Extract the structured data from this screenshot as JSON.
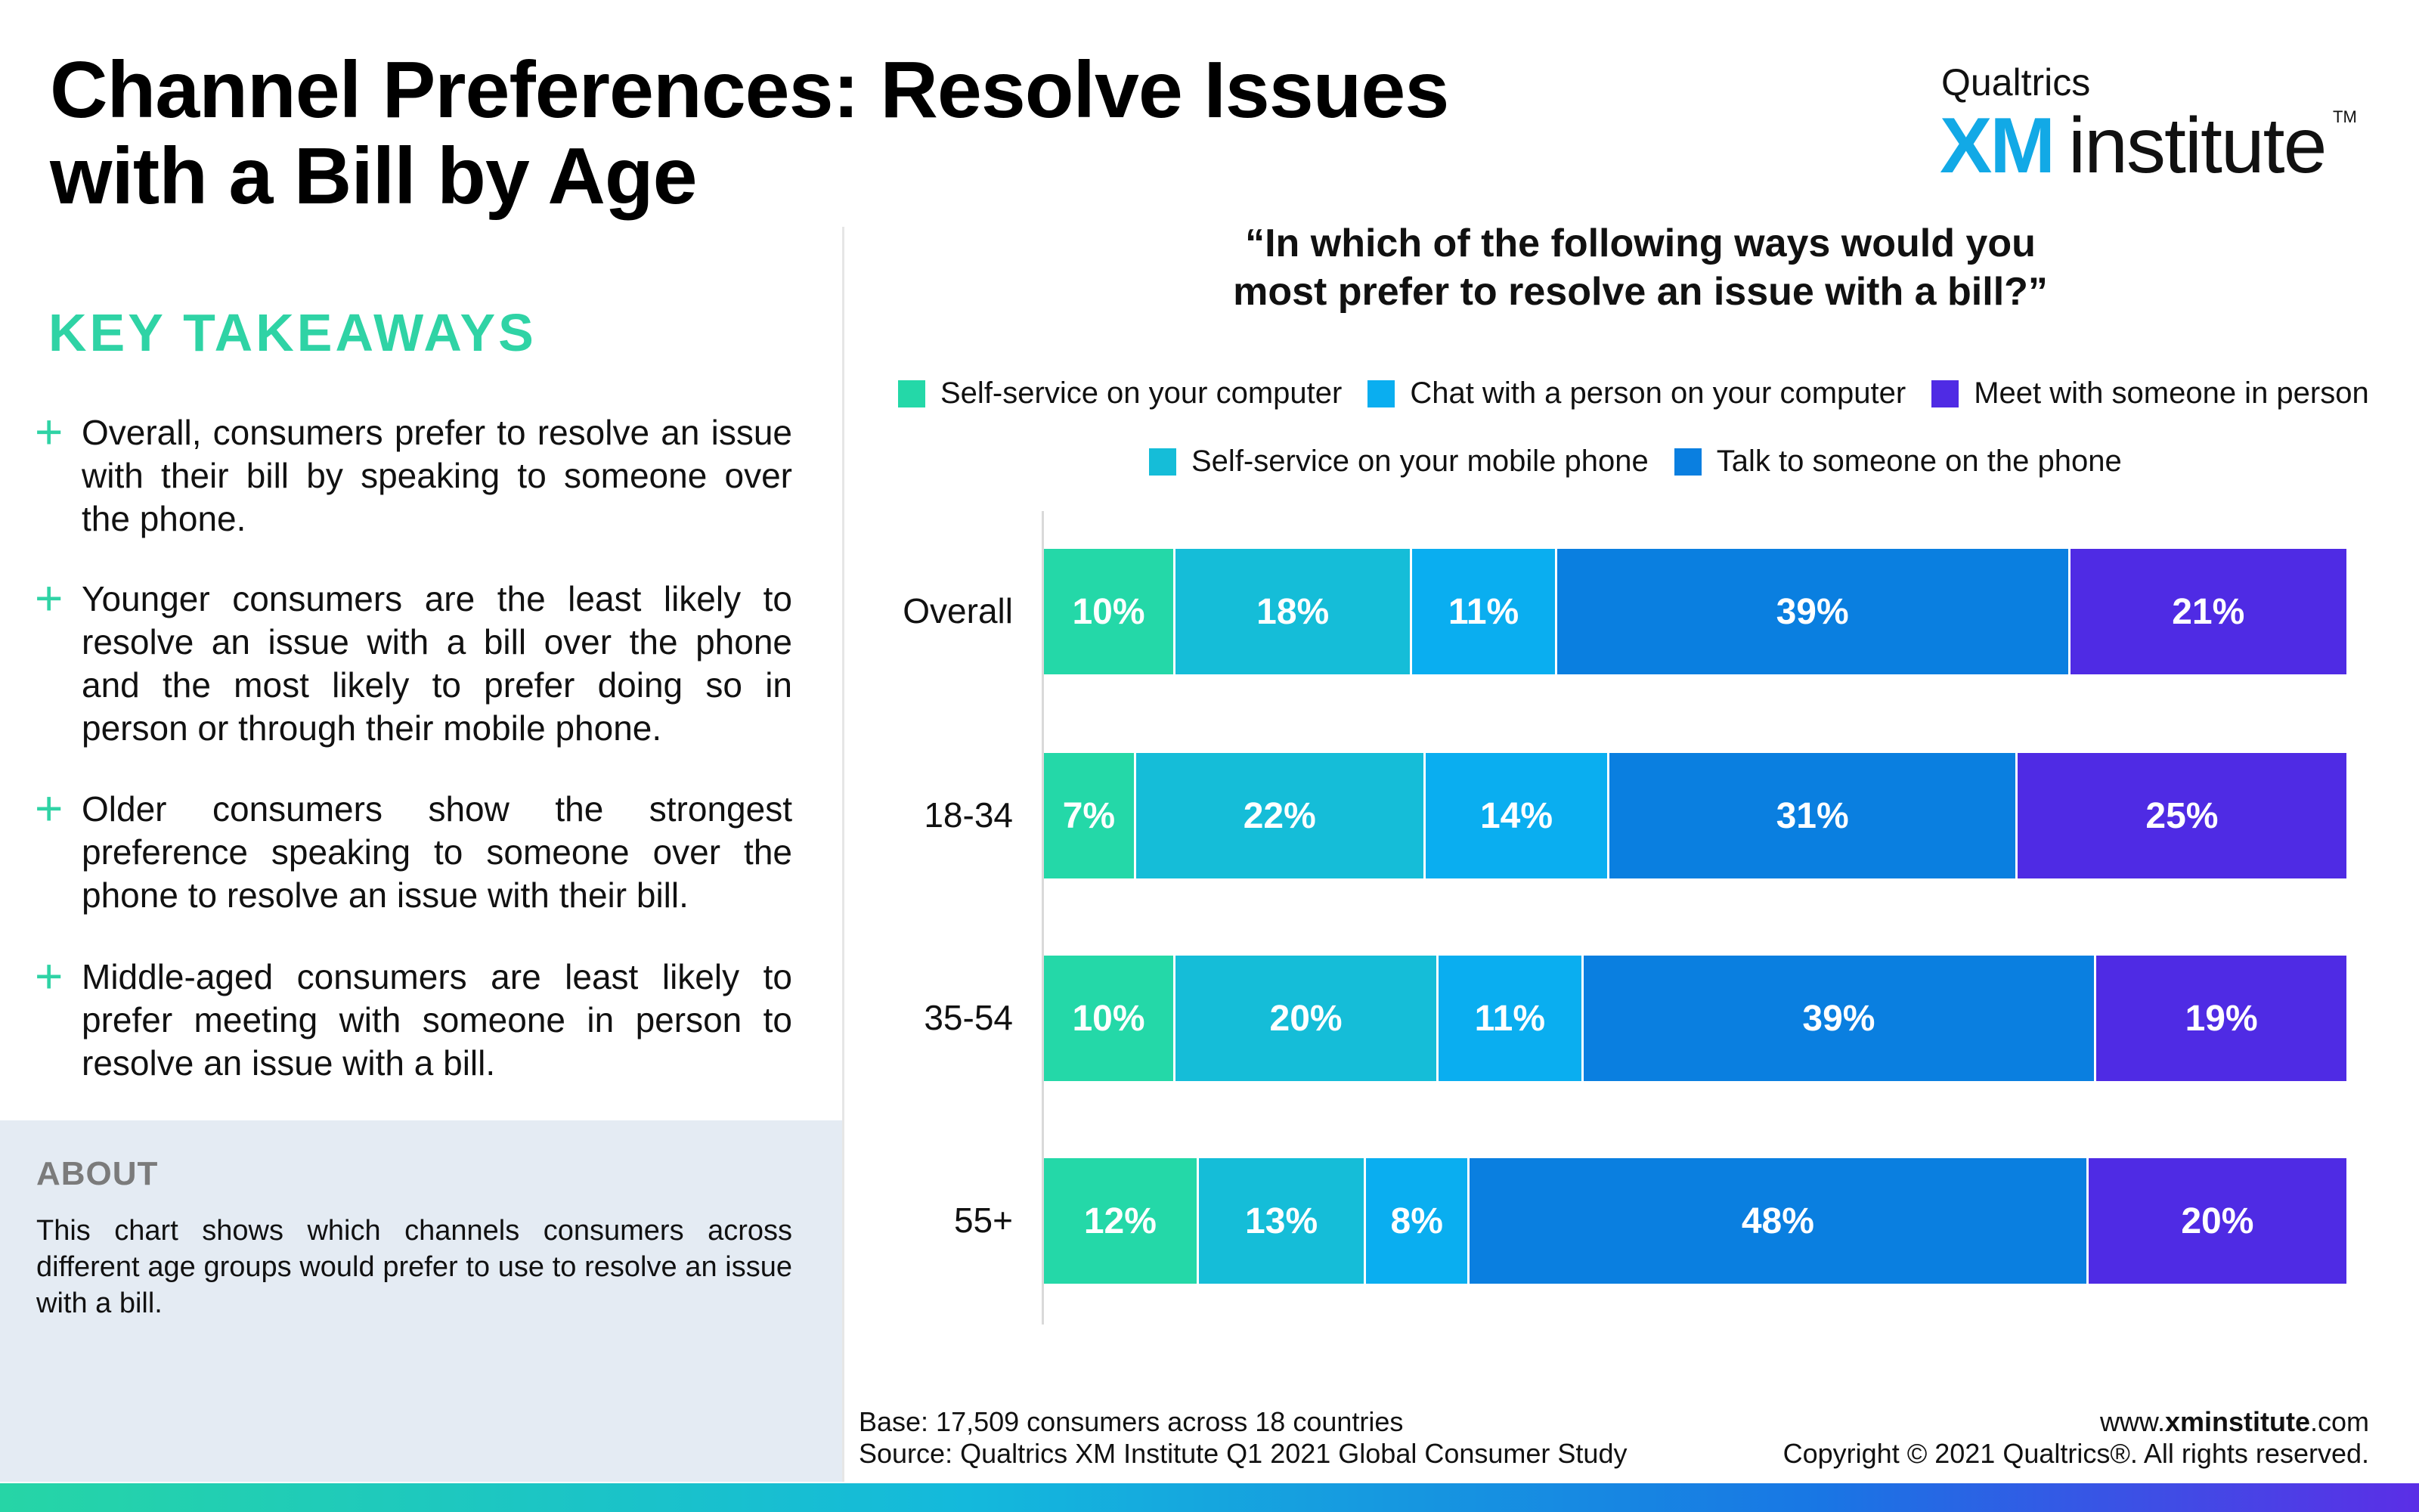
{
  "header": {
    "title_line1": "Channel Preferences: Resolve Issues",
    "title_line2": "with a Bill by Age",
    "logo_top": "Qualtrics",
    "logo_xm": "XM",
    "logo_institute": "institute",
    "logo_tm": "TM"
  },
  "takeaways": {
    "heading": "KEY TAKEAWAYS",
    "items": [
      "Overall, consumers prefer to resolve an issue with their bill by speaking to someone over the phone.",
      "Younger consumers are the least likely to resolve an issue with a bill over the phone and the most likely to prefer doing so in person or through their mobile phone.",
      "Older consumers show the strongest preference speaking to someone over the phone to resolve an issue with their bill.",
      "Middle-aged consumers are least likely to prefer meeting with someone in person to resolve an issue with a bill."
    ]
  },
  "about": {
    "heading": "ABOUT",
    "text": "This chart shows which channels consumers across different age groups would prefer to use to resolve an issue with a bill."
  },
  "chart_data": {
    "type": "bar",
    "orientation": "horizontal",
    "stacked": true,
    "title_line1": "“In which of the following ways would you",
    "title_line2": "most prefer to resolve an issue with a bill?”",
    "categories": [
      "Overall",
      "18-34",
      "35-54",
      "55+"
    ],
    "series": [
      {
        "name": "Self-service on your computer",
        "color": "#24d8a8",
        "values": [
          10,
          7,
          10,
          12
        ],
        "labels": [
          "10%",
          "7%",
          "10%",
          "12%"
        ]
      },
      {
        "name": "Self-service on your mobile phone",
        "color": "#15bdd8",
        "values": [
          18,
          22,
          20,
          13
        ],
        "labels": [
          "18%",
          "22%",
          "20%",
          "13%"
        ]
      },
      {
        "name": "Chat with a person on your computer",
        "color": "#0aaef0",
        "values": [
          11,
          14,
          11,
          8
        ],
        "labels": [
          "11%",
          "14%",
          "11%",
          "8%"
        ]
      },
      {
        "name": "Talk to someone on the phone",
        "color": "#0a7fe0",
        "values": [
          39,
          31,
          39,
          48
        ],
        "labels": [
          "39%",
          "31%",
          "39%",
          "48%"
        ]
      },
      {
        "name": "Meet with someone in person",
        "color": "#4f2be4",
        "values": [
          21,
          25,
          19,
          20
        ],
        "labels": [
          "21%",
          "25%",
          "19%",
          "20%"
        ]
      }
    ],
    "legend_position": "top",
    "grid": false
  },
  "footer": {
    "base": "Base: 17,509 consumers across 18 countries",
    "source": "Source: Qualtrics XM Institute Q1 2021 Global Consumer Study",
    "website_prefix": "www.",
    "website_bold": "xminstitute",
    "website_suffix": ".com",
    "copyright": "Copyright © 2021 Qualtrics®. All rights reserved."
  }
}
